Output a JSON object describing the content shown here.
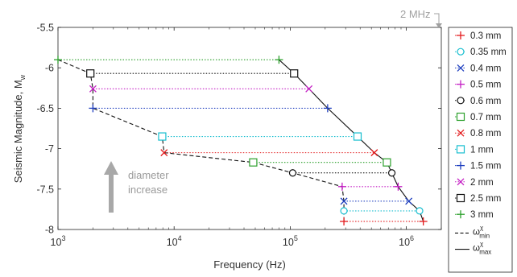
{
  "chart_data": {
    "type": "scatter",
    "xlabel": "Frequency (Hz)",
    "ylabel": "Seismic Magnitude, M",
    "ylabel_sub": "w",
    "xscale": "log",
    "xlim": [
      1000,
      2000000
    ],
    "ylim": [
      -8,
      -5.5
    ],
    "x_ticks": [
      1000,
      10000,
      100000,
      1000000
    ],
    "x_tick_labels": [
      {
        "base": "10",
        "exp": "3"
      },
      {
        "base": "10",
        "exp": "4"
      },
      {
        "base": "10",
        "exp": "5"
      },
      {
        "base": "10",
        "exp": "6"
      }
    ],
    "y_ticks": [
      -8,
      -7.5,
      -7,
      -6.5,
      -6,
      -5.5
    ],
    "y_tick_labels": [
      "-8",
      "-7.5",
      "-7",
      "-6.5",
      "-6",
      "-5.5"
    ],
    "annotation_2mhz": "2 MHz",
    "annotation_diameter": [
      "diameter",
      "increase"
    ],
    "legend_position": "outside-right",
    "series": [
      {
        "name": "0.3 mm",
        "marker": "plus",
        "color": "#e31a1c",
        "x": [
          290000,
          1400000
        ],
        "y": [
          -7.9,
          -7.9
        ]
      },
      {
        "name": "0.35 mm",
        "marker": "circle",
        "color": "#17becf",
        "x": [
          290000,
          1300000
        ],
        "y": [
          -7.77,
          -7.77
        ]
      },
      {
        "name": "0.4 mm",
        "marker": "x",
        "color": "#1f3fbf",
        "x": [
          290000,
          1050000
        ],
        "y": [
          -7.65,
          -7.65
        ]
      },
      {
        "name": "0.5 mm",
        "marker": "plus",
        "color": "#c41ec4",
        "x": [
          280000,
          850000
        ],
        "y": [
          -7.47,
          -7.47
        ]
      },
      {
        "name": "0.6 mm",
        "marker": "circle",
        "color": "#111111",
        "x": [
          105000,
          750000
        ],
        "y": [
          -7.3,
          -7.3
        ]
      },
      {
        "name": "0.7 mm",
        "marker": "square",
        "color": "#2ca02c",
        "x": [
          48000,
          680000
        ],
        "y": [
          -7.17,
          -7.17
        ]
      },
      {
        "name": "0.8 mm",
        "marker": "x",
        "color": "#e31a1c",
        "x": [
          8200,
          530000
        ],
        "y": [
          -7.05,
          -7.05
        ]
      },
      {
        "name": "1 mm",
        "marker": "square",
        "color": "#17becf",
        "x": [
          7900,
          380000
        ],
        "y": [
          -6.85,
          -6.85
        ]
      },
      {
        "name": "1.5 mm",
        "marker": "plus",
        "color": "#1f3fbf",
        "x": [
          2000,
          210000
        ],
        "y": [
          -6.5,
          -6.5
        ]
      },
      {
        "name": "2 mm",
        "marker": "x",
        "color": "#c41ec4",
        "x": [
          2000,
          145000
        ],
        "y": [
          -6.26,
          -6.26
        ]
      },
      {
        "name": "2.5 mm",
        "marker": "square",
        "color": "#111111",
        "x": [
          1900,
          108000
        ],
        "y": [
          -6.07,
          -6.07
        ]
      },
      {
        "name": "3 mm",
        "marker": "plus",
        "color": "#2ca02c",
        "x": [
          1000,
          80000
        ],
        "y": [
          -5.9,
          -5.9
        ]
      }
    ],
    "boundary_lines": [
      {
        "name": "ω",
        "sup": "χ",
        "sub": "min",
        "style": "dashed",
        "color": "#111111",
        "x": [
          1000,
          1900,
          2000,
          2000,
          7900,
          8200,
          48000,
          105000,
          280000,
          290000,
          290000,
          290000
        ],
        "y": [
          -5.9,
          -6.07,
          -6.26,
          -6.5,
          -6.85,
          -7.05,
          -7.17,
          -7.3,
          -7.47,
          -7.65,
          -7.77,
          -7.9
        ]
      },
      {
        "name": "ω",
        "sup": "χ",
        "sub": "max",
        "style": "solid",
        "color": "#111111",
        "x": [
          80000,
          108000,
          145000,
          210000,
          380000,
          530000,
          680000,
          750000,
          850000,
          1050000,
          1300000,
          1400000
        ],
        "y": [
          -5.9,
          -6.07,
          -6.26,
          -6.5,
          -6.85,
          -7.05,
          -7.17,
          -7.3,
          -7.47,
          -7.65,
          -7.77,
          -7.9
        ]
      }
    ]
  }
}
